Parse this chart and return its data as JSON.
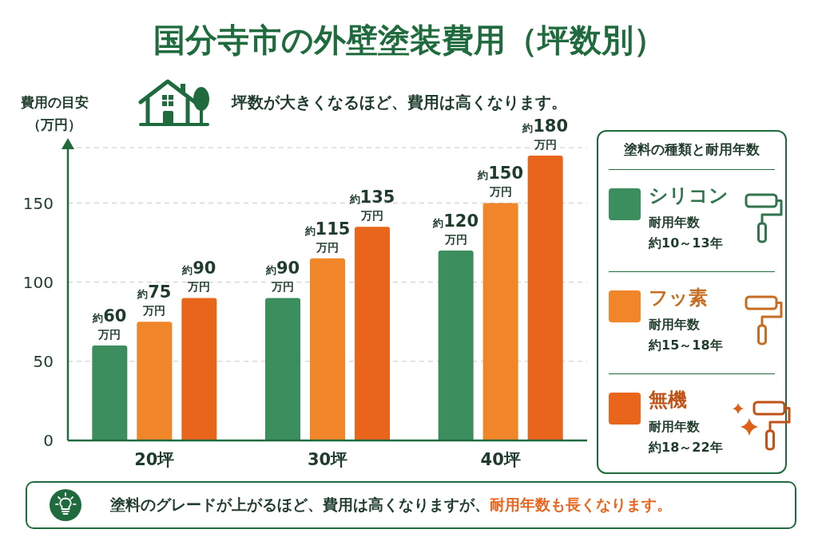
{
  "chart_data": {
    "type": "bar",
    "title": "国分寺市の外壁塗装費用（坪数別）",
    "subtitle": "坪数が大きくなるほど、費用は高くなります。",
    "ylabel": "費用の目安（万円）",
    "legend_title": "塗料の種類と耐用年数",
    "categories": [
      "20坪",
      "30坪",
      "40坪"
    ],
    "series": [
      {
        "name": "シリコン",
        "color": "#3c8e5f",
        "values": [
          60,
          90,
          120
        ],
        "value_labels": [
          "約60\n万円",
          "約90\n万円",
          "約120\n万円"
        ]
      },
      {
        "name": "フッ素",
        "color": "#f0852a",
        "values": [
          75,
          115,
          150
        ],
        "value_labels": [
          "約75\n万円",
          "約115\n万円",
          "約150\n万円"
        ]
      },
      {
        "name": "無機",
        "color": "#e9651c",
        "values": [
          90,
          135,
          180
        ],
        "value_labels": [
          "約90\n万円",
          "約135\n万円",
          "約180\n万円"
        ]
      }
    ],
    "ylim": [
      0,
      185
    ],
    "yticks": [
      0,
      50,
      100,
      150
    ],
    "grid": "y",
    "legend": "right",
    "annotations": [
      "耐用年数",
      "約10～13年",
      "耐用年数",
      "約15～18年",
      "耐用年数",
      "約18～22年",
      "塗料のグレードが上がるほど、費用は高くなりますが、",
      "耐用年数も長くなります。"
    ]
  }
}
